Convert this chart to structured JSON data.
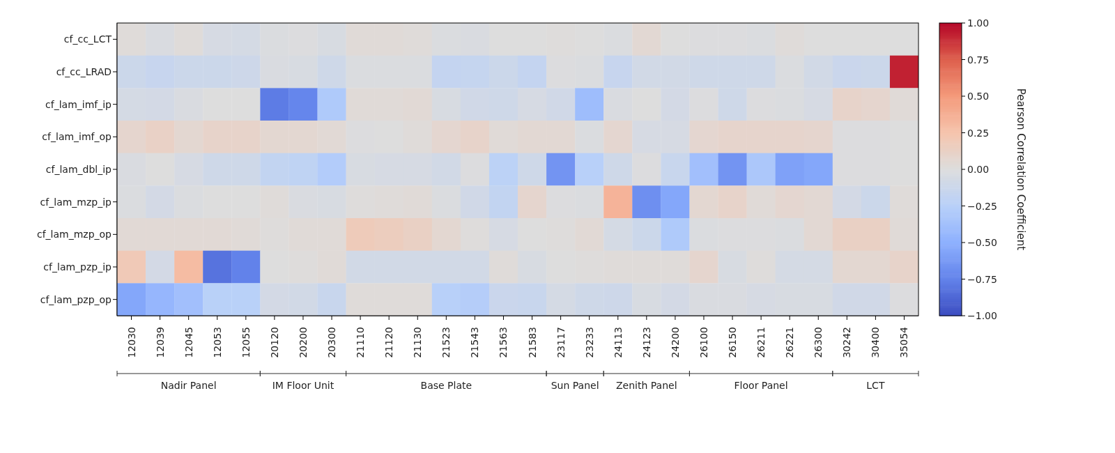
{
  "chart_data": {
    "type": "heatmap",
    "categories": [
      "12030",
      "12039",
      "12045",
      "12053",
      "12055",
      "20120",
      "20200",
      "20300",
      "21110",
      "21120",
      "21130",
      "21523",
      "21543",
      "21563",
      "21583",
      "23117",
      "23233",
      "24113",
      "24123",
      "24200",
      "26100",
      "26150",
      "26211",
      "26221",
      "26300",
      "30242",
      "30400",
      "35054"
    ],
    "y_categories": [
      "cf_cc_LCT",
      "cf_cc_LRAD",
      "cf_lam_imf_ip",
      "cf_lam_imf_op",
      "cf_lam_dbl_ip",
      "cf_lam_mzp_ip",
      "cf_lam_mzp_op",
      "cf_lam_pzp_ip",
      "cf_lam_pzp_op"
    ],
    "cells": [
      [
        0.02,
        -0.03,
        0.02,
        -0.05,
        -0.06,
        -0.02,
        -0.01,
        -0.04,
        0.03,
        0.03,
        0.02,
        -0.02,
        -0.03,
        0.0,
        0.0,
        0.01,
        0.0,
        -0.02,
        0.05,
        0.0,
        -0.01,
        -0.01,
        -0.02,
        0.02,
        0.0,
        0.0,
        0.0,
        0.0
      ],
      [
        -0.12,
        -0.15,
        -0.12,
        -0.12,
        -0.11,
        -0.03,
        -0.04,
        -0.1,
        -0.02,
        -0.02,
        -0.02,
        -0.17,
        -0.16,
        -0.12,
        -0.17,
        -0.01,
        -0.02,
        -0.15,
        -0.08,
        -0.08,
        -0.1,
        -0.1,
        -0.1,
        -0.02,
        -0.08,
        -0.13,
        -0.12,
        0.92
      ],
      [
        -0.06,
        -0.07,
        -0.03,
        0.0,
        0.0,
        -0.78,
        -0.73,
        -0.3,
        0.03,
        0.03,
        0.04,
        -0.04,
        -0.09,
        -0.1,
        -0.05,
        -0.09,
        -0.4,
        -0.03,
        0.0,
        -0.07,
        -0.01,
        -0.1,
        -0.01,
        -0.02,
        -0.05,
        0.1,
        0.08,
        0.03
      ],
      [
        0.08,
        0.12,
        0.06,
        0.1,
        0.1,
        0.06,
        0.06,
        0.04,
        -0.01,
        0.0,
        0.02,
        0.07,
        0.1,
        0.03,
        0.05,
        0.05,
        -0.02,
        0.07,
        -0.05,
        -0.05,
        0.07,
        0.09,
        0.09,
        0.09,
        0.08,
        -0.01,
        -0.01,
        0.0
      ],
      [
        -0.03,
        0.0,
        -0.05,
        -0.1,
        -0.1,
        -0.18,
        -0.2,
        -0.28,
        -0.04,
        -0.05,
        -0.05,
        -0.08,
        -0.01,
        -0.22,
        -0.1,
        -0.65,
        -0.25,
        -0.1,
        -0.01,
        -0.14,
        -0.38,
        -0.65,
        -0.32,
        -0.58,
        -0.55,
        -0.01,
        -0.01,
        0.0
      ],
      [
        -0.02,
        -0.07,
        -0.02,
        0.0,
        0.0,
        0.02,
        -0.03,
        -0.04,
        0.01,
        0.02,
        0.03,
        -0.02,
        -0.09,
        -0.18,
        0.08,
        -0.01,
        -0.02,
        0.35,
        -0.68,
        -0.55,
        0.06,
        0.1,
        0.03,
        0.07,
        0.05,
        -0.07,
        -0.12,
        0.02
      ],
      [
        0.04,
        0.04,
        0.04,
        0.04,
        0.03,
        0.01,
        0.03,
        0.03,
        0.18,
        0.16,
        0.13,
        0.06,
        0.01,
        -0.05,
        0.0,
        0.01,
        0.04,
        -0.06,
        -0.12,
        -0.3,
        -0.02,
        -0.01,
        -0.01,
        -0.02,
        0.05,
        0.13,
        0.13,
        0.03
      ],
      [
        0.2,
        -0.07,
        0.3,
        -0.82,
        -0.75,
        0.0,
        0.01,
        0.03,
        -0.08,
        -0.08,
        -0.08,
        -0.08,
        -0.08,
        0.02,
        -0.04,
        0.0,
        0.01,
        0.02,
        0.02,
        0.02,
        0.08,
        -0.04,
        0.01,
        -0.06,
        -0.06,
        0.06,
        0.06,
        0.1
      ],
      [
        -0.55,
        -0.45,
        -0.38,
        -0.24,
        -0.24,
        -0.07,
        -0.08,
        -0.14,
        0.02,
        0.02,
        0.02,
        -0.25,
        -0.27,
        -0.13,
        -0.14,
        -0.06,
        -0.1,
        -0.11,
        -0.04,
        -0.07,
        -0.03,
        -0.03,
        -0.05,
        -0.04,
        -0.04,
        -0.09,
        -0.09,
        -0.01
      ]
    ],
    "clim": [
      -1,
      1
    ],
    "cticks": [
      {
        "value": -1,
        "label": "−1.00"
      },
      {
        "value": -0.75,
        "label": "−0.75"
      },
      {
        "value": -0.5,
        "label": "−0.50"
      },
      {
        "value": -0.25,
        "label": "−0.25"
      },
      {
        "value": 0,
        "label": "0.00"
      },
      {
        "value": 0.25,
        "label": "0.25"
      },
      {
        "value": 0.5,
        "label": "0.50"
      },
      {
        "value": 0.75,
        "label": "0.75"
      },
      {
        "value": 1,
        "label": "1.00"
      }
    ],
    "clabel": "Pearson Correlation Coefficient",
    "annotations": [
      "Nadir Panel",
      "IM Floor Unit",
      "Base Plate",
      "Sun Panel",
      "Zenith Panel",
      "Floor Panel",
      "LCT"
    ]
  }
}
